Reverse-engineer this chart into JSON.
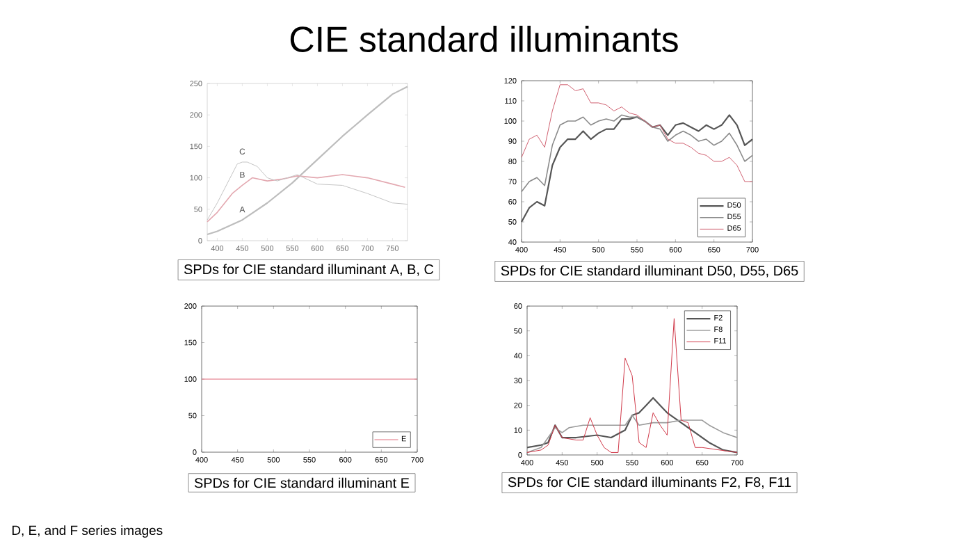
{
  "chart_data": [
    {
      "type": "line",
      "title": "CIE standard illuminants",
      "xlim": [
        380,
        780
      ],
      "ylim": [
        0,
        250
      ],
      "xticks": [
        400,
        450,
        500,
        550,
        600,
        650,
        700,
        750
      ],
      "yticks": [
        0,
        50,
        100,
        150,
        200,
        250
      ],
      "marker": "none",
      "legend": false,
      "series": [
        {
          "name": "A",
          "color": "#bdbdbd",
          "x": [
            380,
            400,
            450,
            500,
            550,
            600,
            650,
            700,
            750,
            780
          ],
          "values": [
            10,
            15,
            33,
            60,
            92,
            129,
            166,
            200,
            233,
            245
          ]
        },
        {
          "name": "B",
          "color": "#e3a8b0",
          "x": [
            380,
            400,
            430,
            450,
            470,
            500,
            530,
            560,
            600,
            650,
            700,
            750,
            775
          ],
          "values": [
            30,
            45,
            75,
            88,
            100,
            95,
            98,
            103,
            100,
            105,
            100,
            90,
            85
          ]
        },
        {
          "name": "C",
          "color": "#c4c4c4",
          "x": [
            380,
            400,
            440,
            450,
            460,
            480,
            500,
            520,
            560,
            600,
            650,
            700,
            750,
            780
          ],
          "values": [
            33,
            60,
            122,
            125,
            125,
            118,
            100,
            95,
            105,
            90,
            88,
            75,
            60,
            58
          ]
        }
      ],
      "annotations": [
        "SPDs for CIE standard illuminant A, B, C"
      ]
    },
    {
      "type": "line",
      "xlim": [
        400,
        700
      ],
      "ylim": [
        40,
        120
      ],
      "xticks": [
        400,
        450,
        500,
        550,
        600,
        650,
        700
      ],
      "yticks": [
        40,
        50,
        60,
        70,
        80,
        90,
        100,
        110,
        120
      ],
      "marker": "none",
      "legend": "bottom right",
      "x": [
        400,
        410,
        420,
        430,
        440,
        450,
        460,
        470,
        480,
        490,
        500,
        510,
        520,
        530,
        540,
        550,
        560,
        570,
        580,
        590,
        600,
        610,
        620,
        630,
        640,
        650,
        660,
        670,
        680,
        690,
        700
      ],
      "series": [
        {
          "name": "D50",
          "color": "#555555",
          "values": [
            50,
            57,
            60,
            58,
            78,
            87,
            91,
            91,
            95,
            91,
            94,
            96,
            96,
            101,
            101,
            102,
            100,
            97,
            98,
            93,
            98,
            99,
            97,
            95,
            98,
            96,
            98,
            103,
            98,
            88,
            91
          ]
        },
        {
          "name": "D55",
          "color": "#8a8a8a",
          "values": [
            65,
            70,
            72,
            68,
            88,
            98,
            100,
            100,
            102,
            98,
            100,
            101,
            100,
            103,
            102,
            102,
            100,
            97,
            96,
            90,
            93,
            95,
            93,
            90,
            91,
            88,
            90,
            94,
            88,
            80,
            83
          ]
        },
        {
          "name": "D65",
          "color": "#d06070",
          "values": [
            82,
            91,
            93,
            87,
            105,
            118,
            118,
            115,
            116,
            109,
            109,
            108,
            105,
            107,
            104,
            103,
            100,
            97,
            98,
            91,
            89,
            89,
            87,
            84,
            83,
            80,
            80,
            82,
            78,
            70,
            70
          ]
        }
      ],
      "annotations": [
        "SPDs for CIE standard illuminant D50, D55, D65"
      ]
    },
    {
      "type": "line",
      "xlim": [
        400,
        700
      ],
      "ylim": [
        0,
        200
      ],
      "xticks": [
        400,
        450,
        500,
        550,
        600,
        650,
        700
      ],
      "yticks": [
        0,
        50,
        100,
        150,
        200
      ],
      "marker": "none",
      "legend": "bottom right",
      "series": [
        {
          "name": "E",
          "color": "#e06878",
          "x": [
            400,
            700
          ],
          "values": [
            100,
            100
          ]
        }
      ],
      "annotations": [
        "SPDs for CIE standard illuminant E",
        "D, E, and F series images"
      ]
    },
    {
      "type": "line",
      "xlim": [
        400,
        700
      ],
      "ylim": [
        0,
        60
      ],
      "xticks": [
        400,
        450,
        500,
        550,
        600,
        650,
        700
      ],
      "yticks": [
        0,
        10,
        20,
        30,
        40,
        50,
        60
      ],
      "marker": "none",
      "legend": "top right",
      "series": [
        {
          "name": "F2",
          "color": "#555555",
          "x": [
            400,
            420,
            430,
            440,
            450,
            470,
            500,
            520,
            540,
            550,
            560,
            570,
            580,
            590,
            600,
            620,
            640,
            660,
            680,
            700
          ],
          "values": [
            3,
            4,
            5,
            12,
            7,
            7,
            8,
            7,
            10,
            16,
            17,
            20,
            23,
            20,
            17,
            13,
            9,
            5,
            2,
            1
          ]
        },
        {
          "name": "F8",
          "color": "#9a9a9a",
          "x": [
            400,
            420,
            440,
            450,
            460,
            480,
            500,
            540,
            550,
            560,
            580,
            600,
            620,
            650,
            660,
            680,
            700
          ],
          "values": [
            1,
            3,
            11,
            9,
            11,
            12,
            12,
            12,
            16,
            12,
            13,
            13,
            14,
            14,
            12,
            9,
            7
          ]
        },
        {
          "name": "F11",
          "color": "#d03848",
          "x": [
            400,
            420,
            430,
            440,
            450,
            470,
            480,
            490,
            500,
            510,
            520,
            530,
            540,
            550,
            560,
            570,
            580,
            590,
            600,
            610,
            620,
            630,
            640,
            650,
            700
          ],
          "values": [
            1,
            2,
            4,
            12,
            7,
            6,
            6,
            15,
            8,
            3,
            1,
            1,
            39,
            32,
            5,
            3,
            17,
            12,
            8,
            55,
            14,
            13,
            3,
            3,
            1
          ]
        }
      ],
      "annotations": [
        "SPDs for CIE standard illuminants F2, F8, F11"
      ]
    }
  ]
}
